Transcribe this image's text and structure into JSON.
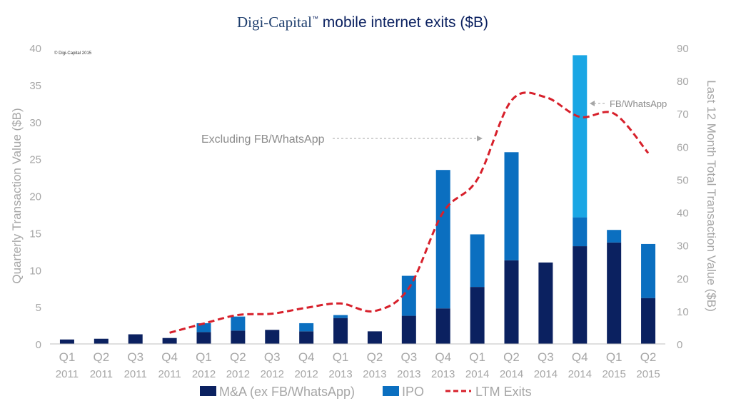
{
  "chart_data": {
    "type": "bar",
    "title_brand": "Digi-Capital",
    "title_tm": "™",
    "title_rest": " mobile internet exits ($B)",
    "copyright": "© Digi-Capital 2015",
    "ylabel_left": "Quarterly Transaction Value ($B)",
    "ylabel_right": "Last 12 Month Total Transaction Value ($B)",
    "ylim_left": [
      0,
      40
    ],
    "ylim_right": [
      0,
      90
    ],
    "yticks_left": [
      0,
      5,
      10,
      15,
      20,
      25,
      30,
      35,
      40
    ],
    "yticks_right": [
      0,
      10,
      20,
      30,
      40,
      50,
      60,
      70,
      80,
      90
    ],
    "categories": [
      {
        "q": "Q1",
        "y": "2011"
      },
      {
        "q": "Q2",
        "y": "2011"
      },
      {
        "q": "Q3",
        "y": "2011"
      },
      {
        "q": "Q4",
        "y": "2011"
      },
      {
        "q": "Q1",
        "y": "2012"
      },
      {
        "q": "Q2",
        "y": "2012"
      },
      {
        "q": "Q3",
        "y": "2012"
      },
      {
        "q": "Q4",
        "y": "2012"
      },
      {
        "q": "Q1",
        "y": "2013"
      },
      {
        "q": "Q2",
        "y": "2013"
      },
      {
        "q": "Q3",
        "y": "2013"
      },
      {
        "q": "Q4",
        "y": "2013"
      },
      {
        "q": "Q1",
        "y": "2014"
      },
      {
        "q": "Q2",
        "y": "2014"
      },
      {
        "q": "Q3",
        "y": "2014"
      },
      {
        "q": "Q4",
        "y": "2014"
      },
      {
        "q": "Q1",
        "y": "2015"
      },
      {
        "q": "Q2",
        "y": "2015"
      }
    ],
    "series": [
      {
        "name": "M&A (ex FB/WhatsApp)",
        "color": "#0b2160",
        "axis": "left",
        "values": [
          0.6,
          0.7,
          1.3,
          0.8,
          1.6,
          1.8,
          1.9,
          1.7,
          3.5,
          1.7,
          3.8,
          4.8,
          7.7,
          11.3,
          11.0,
          13.2,
          13.7,
          6.2
        ]
      },
      {
        "name": "IPO",
        "color": "#0b6fc0",
        "axis": "left",
        "values": [
          0,
          0,
          0,
          0,
          1.2,
          1.9,
          0,
          1.1,
          0.4,
          0,
          5.4,
          18.7,
          7.1,
          14.6,
          0,
          3.9,
          1.7,
          7.3
        ]
      },
      {
        "name": "FB/WhatsApp",
        "color": "#1aa6e4",
        "axis": "left",
        "values": [
          0,
          0,
          0,
          0,
          0,
          0,
          0,
          0,
          0,
          0,
          0,
          0,
          0,
          0,
          0,
          21.9,
          0,
          0
        ]
      },
      {
        "name": "LTM Exits",
        "color": "#d7202b",
        "axis": "right",
        "style": "dashed",
        "values": [
          null,
          null,
          null,
          3.4,
          6.2,
          8.8,
          9.2,
          11.0,
          12.3,
          10.0,
          17.0,
          40.0,
          50.0,
          74.0,
          75.0,
          69.0,
          70.0,
          58.0
        ]
      }
    ],
    "legend": [
      {
        "label": "M&A (ex FB/WhatsApp)",
        "kind": "box",
        "color": "#0b2160"
      },
      {
        "label": "IPO",
        "kind": "box",
        "color": "#0b6fc0"
      },
      {
        "label": "LTM Exits",
        "kind": "dash",
        "color": "#d7202b"
      }
    ],
    "legend_position": "bottom",
    "annotations": [
      {
        "text": "Excluding FB/WhatsApp",
        "points_to": "Q1 2014 LTM"
      },
      {
        "text": "FB/WhatsApp",
        "points_to": "Q4 2014 bar"
      }
    ]
  }
}
